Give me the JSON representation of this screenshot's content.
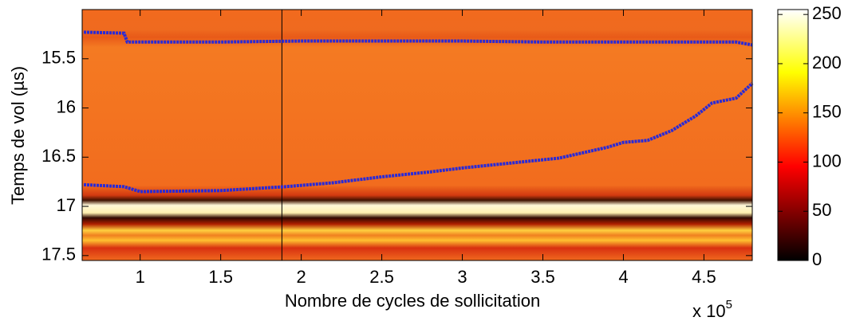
{
  "chart_data": {
    "type": "heatmap",
    "xlabel": "Nombre de cycles de sollicitation",
    "ylabel": "Temps de vol (µs)",
    "x_scale_label": {
      "base": "x 10",
      "exponent": "5"
    },
    "xlim": [
      0.64,
      4.8
    ],
    "xticks": [
      1,
      1.5,
      2,
      2.5,
      3,
      3.5,
      4,
      4.5
    ],
    "ylim": [
      15.0,
      17.55
    ],
    "yticks": [
      15.5,
      16,
      16.5,
      17,
      17.5
    ],
    "y_reversed": true,
    "clim": [
      0,
      255
    ],
    "cticks": [
      0,
      50,
      100,
      150,
      200,
      250
    ],
    "marker_x": 1.88,
    "series": [
      {
        "color": "#2a2ad6",
        "x": [
          0.65,
          0.9,
          0.92,
          1.5,
          2.0,
          2.5,
          3.0,
          3.5,
          4.0,
          4.5,
          4.7,
          4.8
        ],
        "values": [
          15.23,
          15.24,
          15.33,
          15.33,
          15.32,
          15.32,
          15.32,
          15.33,
          15.33,
          15.33,
          15.33,
          15.36
        ]
      },
      {
        "color": "#2a2ad6",
        "x": [
          0.65,
          0.9,
          1.0,
          1.5,
          1.9,
          2.2,
          2.5,
          2.8,
          3.0,
          3.3,
          3.6,
          3.9,
          4.0,
          4.15,
          4.3,
          4.45,
          4.55,
          4.7,
          4.8
        ],
        "values": [
          16.78,
          16.8,
          16.85,
          16.84,
          16.8,
          16.76,
          16.7,
          16.65,
          16.61,
          16.56,
          16.51,
          16.4,
          16.35,
          16.33,
          16.23,
          16.08,
          15.95,
          15.9,
          15.75
        ]
      }
    ]
  }
}
